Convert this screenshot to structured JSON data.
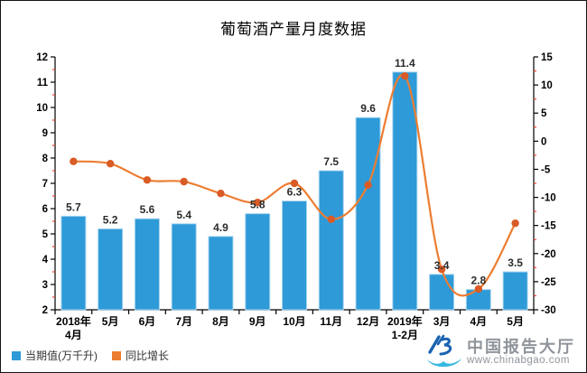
{
  "chart_data": {
    "type": "bar",
    "title": "葡萄酒产量月度数据",
    "categories": [
      [
        "2018年",
        "4月"
      ],
      [
        "5月"
      ],
      [
        "6月"
      ],
      [
        "7月"
      ],
      [
        "8月"
      ],
      [
        "9月"
      ],
      [
        "10月"
      ],
      [
        "11月"
      ],
      [
        "12月"
      ],
      [
        "2019年",
        "1-2月"
      ],
      [
        "3月"
      ],
      [
        "4月"
      ],
      [
        "5月"
      ]
    ],
    "series": [
      {
        "name": "当期值(万千升)",
        "type": "bar",
        "axis": "left",
        "color": "#2E9AD8",
        "stroke": "#A9D5F0",
        "values": [
          5.7,
          5.2,
          5.6,
          5.4,
          4.9,
          5.8,
          6.3,
          7.5,
          9.6,
          11.4,
          3.4,
          2.8,
          3.5
        ]
      },
      {
        "name": "同比增长",
        "type": "line",
        "axis": "right",
        "color": "#ED7D31",
        "marker_color": "#D95B25",
        "values": [
          -3.6,
          -4.0,
          -6.9,
          -7.2,
          -9.3,
          -10.9,
          -7.5,
          -13.9,
          -7.8,
          11.6,
          -22.8,
          -26.3,
          -14.6
        ]
      }
    ],
    "left_axis": {
      "min": 2,
      "max": 12,
      "major_step": 1,
      "minor_step": 0.5
    },
    "right_axis": {
      "min": -30,
      "max": 15,
      "major_step": 5,
      "minor_step": 2.5
    },
    "axis_color": "#000000",
    "minor_tick_color": "#E8432E",
    "bar_label_color": "#2B2B2B",
    "grid": "off",
    "legend_position": "bottom-left",
    "bar_labels_shown": true
  },
  "watermark": {
    "site_name": "中国报告大厅",
    "site_url": "www.chinabgao.com",
    "logo_blue": "#1B63B0",
    "logo_cyan": "#35B8E2"
  }
}
